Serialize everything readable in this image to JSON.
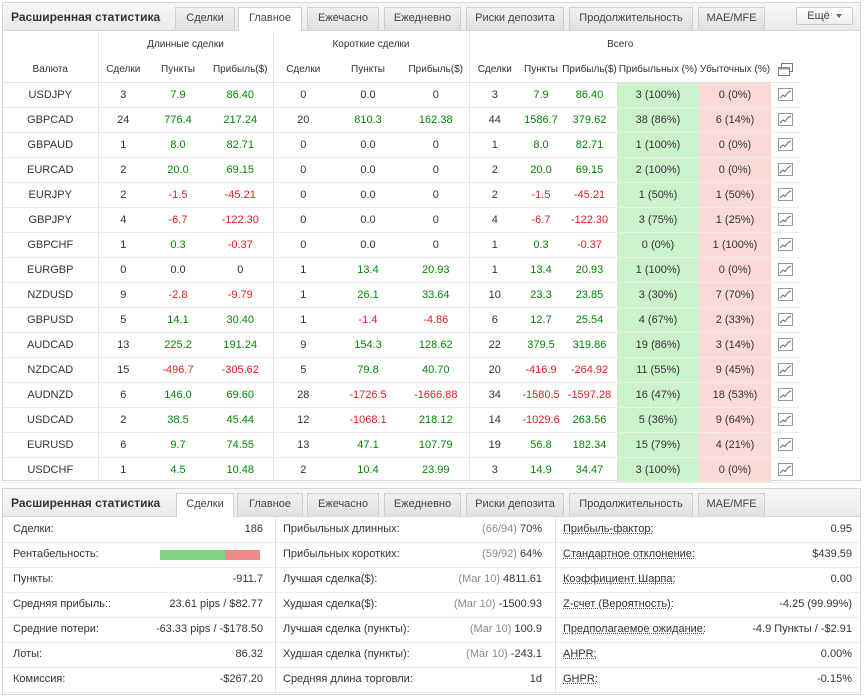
{
  "top": {
    "title": "Расширенная статистика",
    "tabs": [
      "Сделки",
      "Главное",
      "Ежечасно",
      "Ежедневно",
      "Риски депозита",
      "Продолжительность",
      "MAE/MFE"
    ],
    "active_tab": "Главное",
    "more_label": "Ещё",
    "groups": {
      "long": "Длинные сделки",
      "short": "Короткие сделки",
      "total": "Всего"
    },
    "headers": {
      "currency": "Валюта",
      "trades": "Сделки",
      "points": "Пункты",
      "profit": "Прибыль($)",
      "points_total": "Пункты",
      "profit_total": "Прибыль($)",
      "winning": "Прибыльных (%)",
      "losing": "Убыточных (%)"
    },
    "rows": [
      {
        "pair": "USDJPY",
        "lt": "3",
        "lp": "7.9",
        "lpr": "86.40",
        "st": "0",
        "sp": "0.0",
        "spr": "0",
        "tt": "3",
        "tp": "7.9",
        "tpr": "86.40",
        "win": "3 (100%)",
        "loss": "0 (0%)"
      },
      {
        "pair": "GBPCAD",
        "lt": "24",
        "lp": "776.4",
        "lpr": "217.24",
        "st": "20",
        "sp": "810.3",
        "spr": "162.38",
        "tt": "44",
        "tp": "1586.7",
        "tpr": "379.62",
        "win": "38 (86%)",
        "loss": "6 (14%)"
      },
      {
        "pair": "GBPAUD",
        "lt": "1",
        "lp": "8.0",
        "lpr": "82.71",
        "st": "0",
        "sp": "0.0",
        "spr": "0",
        "tt": "1",
        "tp": "8.0",
        "tpr": "82.71",
        "win": "1 (100%)",
        "loss": "0 (0%)"
      },
      {
        "pair": "EURCAD",
        "lt": "2",
        "lp": "20.0",
        "lpr": "69.15",
        "st": "0",
        "sp": "0.0",
        "spr": "0",
        "tt": "2",
        "tp": "20.0",
        "tpr": "69.15",
        "win": "2 (100%)",
        "loss": "0 (0%)"
      },
      {
        "pair": "EURJPY",
        "lt": "2",
        "lp": "-1.5",
        "lpr": "-45.21",
        "st": "0",
        "sp": "0.0",
        "spr": "0",
        "tt": "2",
        "tp": "-1.5",
        "tpr": "-45.21",
        "win": "1 (50%)",
        "loss": "1 (50%)"
      },
      {
        "pair": "GBPJPY",
        "lt": "4",
        "lp": "-6.7",
        "lpr": "-122.30",
        "st": "0",
        "sp": "0.0",
        "spr": "0",
        "tt": "4",
        "tp": "-6.7",
        "tpr": "-122.30",
        "win": "3 (75%)",
        "loss": "1 (25%)"
      },
      {
        "pair": "GBPCHF",
        "lt": "1",
        "lp": "0.3",
        "lpr": "-0.37",
        "st": "0",
        "sp": "0.0",
        "spr": "0",
        "tt": "1",
        "tp": "0.3",
        "tpr": "-0.37",
        "win": "0 (0%)",
        "loss": "1 (100%)"
      },
      {
        "pair": "EURGBP",
        "lt": "0",
        "lp": "0.0",
        "lpr": "0",
        "st": "1",
        "sp": "13.4",
        "spr": "20.93",
        "tt": "1",
        "tp": "13.4",
        "tpr": "20.93",
        "win": "1 (100%)",
        "loss": "0 (0%)"
      },
      {
        "pair": "NZDUSD",
        "lt": "9",
        "lp": "-2.8",
        "lpr": "-9.79",
        "st": "1",
        "sp": "26.1",
        "spr": "33.64",
        "tt": "10",
        "tp": "23.3",
        "tpr": "23.85",
        "win": "3 (30%)",
        "loss": "7 (70%)"
      },
      {
        "pair": "GBPUSD",
        "lt": "5",
        "lp": "14.1",
        "lpr": "30.40",
        "st": "1",
        "sp": "-1.4",
        "spr": "-4.86",
        "tt": "6",
        "tp": "12.7",
        "tpr": "25.54",
        "win": "4 (67%)",
        "loss": "2 (33%)"
      },
      {
        "pair": "AUDCAD",
        "lt": "13",
        "lp": "225.2",
        "lpr": "191.24",
        "st": "9",
        "sp": "154.3",
        "spr": "128.62",
        "tt": "22",
        "tp": "379.5",
        "tpr": "319.86",
        "win": "19 (86%)",
        "loss": "3 (14%)"
      },
      {
        "pair": "NZDCAD",
        "lt": "15",
        "lp": "-496.7",
        "lpr": "-305.62",
        "st": "5",
        "sp": "79.8",
        "spr": "40.70",
        "tt": "20",
        "tp": "-416.9",
        "tpr": "-264.92",
        "win": "11 (55%)",
        "loss": "9 (45%)"
      },
      {
        "pair": "AUDNZD",
        "lt": "6",
        "lp": "146.0",
        "lpr": "69.60",
        "st": "28",
        "sp": "-1726.5",
        "spr": "-1666.88",
        "tt": "34",
        "tp": "-1580.5",
        "tpr": "-1597.28",
        "win": "16 (47%)",
        "loss": "18 (53%)"
      },
      {
        "pair": "USDCAD",
        "lt": "2",
        "lp": "38.5",
        "lpr": "45.44",
        "st": "12",
        "sp": "-1068.1",
        "spr": "218.12",
        "tt": "14",
        "tp": "-1029.6",
        "tpr": "263.56",
        "win": "5 (36%)",
        "loss": "9 (64%)"
      },
      {
        "pair": "EURUSD",
        "lt": "6",
        "lp": "9.7",
        "lpr": "74.55",
        "st": "13",
        "sp": "47.1",
        "spr": "107.79",
        "tt": "19",
        "tp": "56.8",
        "tpr": "182.34",
        "win": "15 (79%)",
        "loss": "4 (21%)"
      },
      {
        "pair": "USDCHF",
        "lt": "1",
        "lp": "4.5",
        "lpr": "10.48",
        "st": "2",
        "sp": "10.4",
        "spr": "23.99",
        "tt": "3",
        "tp": "14.9",
        "tpr": "34.47",
        "win": "3 (100%)",
        "loss": "0 (0%)"
      }
    ]
  },
  "bottom": {
    "title": "Расширенная статистика",
    "tabs": [
      "Сделки",
      "Главное",
      "Ежечасно",
      "Ежедневно",
      "Риски депозита",
      "Продолжительность",
      "MAE/MFE"
    ],
    "active_tab": "Сделки",
    "profitability_fraction": 0.65,
    "colors": {
      "bar_profit": "#7fd67f",
      "bar_loss": "#f08a8a",
      "positive": "#008800",
      "negative": "#e0201e"
    },
    "col1": [
      {
        "label": "Сделки:",
        "value": "186"
      },
      {
        "label": "Рентабельность:",
        "value": ""
      },
      {
        "label": "Пункты:",
        "value": "-911.7"
      },
      {
        "label": "Средняя прибыль::",
        "value": "23.61 pips / $82.77"
      },
      {
        "label": "Средние потери:",
        "value": "-63.33 pips / -$178.50"
      },
      {
        "label": "Лоты:",
        "value": "86.32"
      },
      {
        "label": "Комиссия:",
        "value": "-$267.20"
      }
    ],
    "col2": [
      {
        "label": "Прибыльных длинных:",
        "note": "(66/94)",
        "value": "70%"
      },
      {
        "label": "Прибыльных коротких:",
        "note": "(59/92)",
        "value": "64%"
      },
      {
        "label": "Лучшая сделка($):",
        "note": "(Mar 10)",
        "value": "4811.61"
      },
      {
        "label": "Худшая сделка($):",
        "note": "(Mar 10)",
        "value": "-1500.93"
      },
      {
        "label": "Лучшая сделка (пункты):",
        "note": "(Mar 10)",
        "value": "100.9"
      },
      {
        "label": "Худшая сделка (пункты):",
        "note": "(Mar 10)",
        "value": "-243.1"
      },
      {
        "label": "Средняя длина торговли:",
        "note": "",
        "value": "1d"
      }
    ],
    "col3": [
      {
        "label": "Прибыль-фактор:",
        "value": "0.95"
      },
      {
        "label": "Стандартное отклонение:",
        "value": "$439.59"
      },
      {
        "label": "Коэффициент Шарпа:",
        "value": "0.00"
      },
      {
        "label": "Z-счет (Вероятность):",
        "value": "-4.25 (99.99%)"
      },
      {
        "label": "Предполагаемое ожидание:",
        "value": "-4.9 Пункты / -$2.91"
      },
      {
        "label": "AHPR:",
        "value": "0.00%"
      },
      {
        "label": "GHPR:",
        "value": "-0.15%"
      }
    ]
  }
}
